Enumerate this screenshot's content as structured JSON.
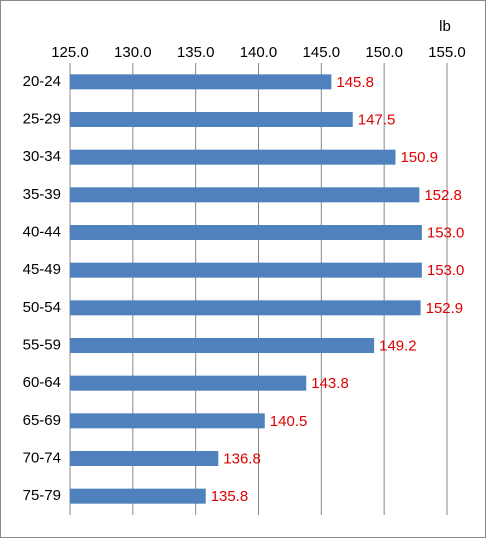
{
  "chart_data": {
    "type": "bar",
    "orientation": "horizontal",
    "x_axis_label": "lb",
    "categories": [
      "20-24",
      "25-29",
      "30-34",
      "35-39",
      "40-44",
      "45-49",
      "50-54",
      "55-59",
      "60-64",
      "65-69",
      "70-74",
      "75-79"
    ],
    "values": [
      145.8,
      147.5,
      150.9,
      152.8,
      153.0,
      153.0,
      152.9,
      149.2,
      143.8,
      140.5,
      136.8,
      135.8
    ],
    "value_labels": [
      "145.8",
      "147.5",
      "150.9",
      "152.8",
      "153.0",
      "153.0",
      "152.9",
      "149.2",
      "143.8",
      "140.5",
      "136.8",
      "135.8"
    ],
    "color": "#4f81bd",
    "label_color": "#e00000",
    "xlim": [
      125,
      155
    ],
    "xticks": [
      {
        "value": 125,
        "label": "125.0"
      },
      {
        "value": 130,
        "label": "130.0"
      },
      {
        "value": 135,
        "label": "135.0"
      },
      {
        "value": 140,
        "label": "140.0"
      },
      {
        "value": 145,
        "label": "145.0"
      },
      {
        "value": 150,
        "label": "150.0"
      },
      {
        "value": 155,
        "label": "155.0"
      }
    ],
    "grid": true
  }
}
